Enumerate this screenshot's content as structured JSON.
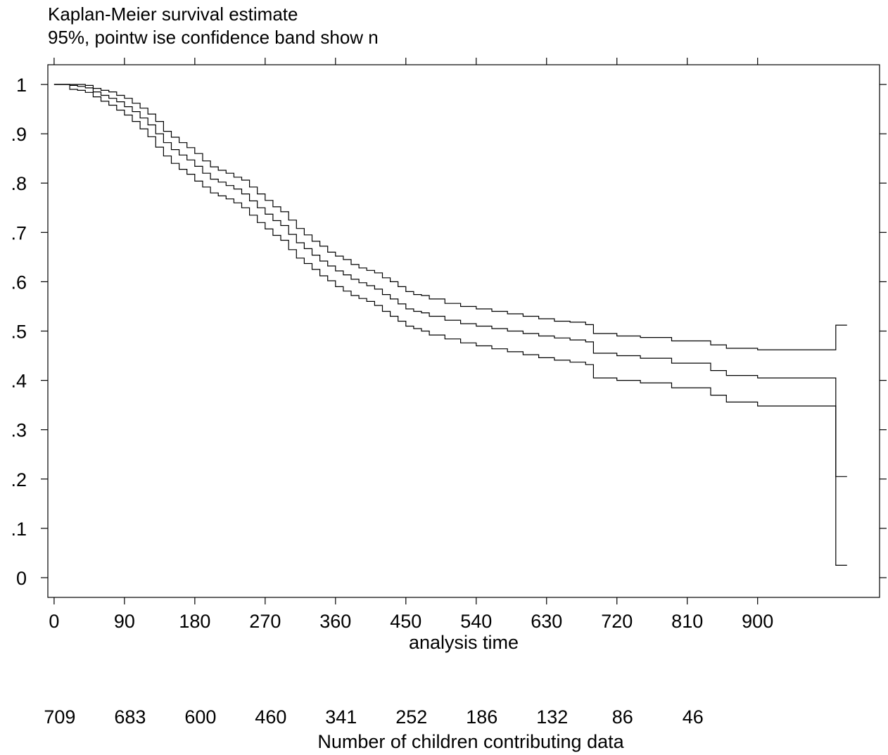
{
  "chart_data": {
    "type": "line",
    "title": "Kaplan-Meier survival estimate",
    "subtitle": "95%, pointw ise confidence band show n",
    "xlabel": "analysis time",
    "ylabel": "",
    "xlim": [
      -8,
      1056
    ],
    "ylim": [
      -0.04,
      1.04
    ],
    "xticks": [
      0,
      90,
      180,
      270,
      360,
      450,
      540,
      630,
      720,
      810,
      900
    ],
    "xtick_labels": [
      "0",
      "90",
      "180",
      "270",
      "360",
      "450",
      "540",
      "630",
      "720",
      "810",
      "900"
    ],
    "yticks": [
      1,
      0.9,
      0.8,
      0.7,
      0.6,
      0.5,
      0.4,
      0.3,
      0.2,
      0.1,
      0
    ],
    "ytick_labels": [
      "1",
      ".9",
      ".8",
      ".7",
      ".6",
      ".5",
      ".4",
      ".3",
      ".2",
      ".1",
      "0"
    ],
    "grid": false,
    "series": [
      {
        "x": [
          0,
          20,
          30,
          40,
          50,
          60,
          70,
          80,
          90,
          100,
          110,
          120,
          130,
          140,
          150,
          160,
          170,
          180,
          190,
          200,
          210,
          220,
          230,
          240,
          250,
          260,
          270,
          280,
          290,
          300,
          310,
          320,
          330,
          340,
          350,
          360,
          370,
          380,
          390,
          400,
          410,
          420,
          430,
          440,
          450,
          460,
          470,
          480,
          500,
          520,
          540,
          560,
          580,
          600,
          620,
          640,
          660,
          680,
          690,
          720,
          750,
          790,
          840,
          860,
          900,
          950,
          1000
        ],
        "y": [
          1.0,
          1.0,
          1.0,
          0.998,
          0.992,
          0.988,
          0.985,
          0.978,
          0.972,
          0.962,
          0.952,
          0.94,
          0.925,
          0.905,
          0.893,
          0.882,
          0.872,
          0.86,
          0.845,
          0.833,
          0.826,
          0.82,
          0.812,
          0.806,
          0.792,
          0.778,
          0.765,
          0.752,
          0.742,
          0.725,
          0.708,
          0.695,
          0.682,
          0.672,
          0.66,
          0.652,
          0.645,
          0.635,
          0.628,
          0.623,
          0.618,
          0.608,
          0.6,
          0.59,
          0.58,
          0.574,
          0.572,
          0.565,
          0.556,
          0.55,
          0.545,
          0.54,
          0.535,
          0.53,
          0.525,
          0.52,
          0.518,
          0.513,
          0.495,
          0.49,
          0.487,
          0.48,
          0.472,
          0.465,
          0.462,
          0.462,
          0.512
        ]
      },
      {
        "x": [
          0,
          20,
          30,
          40,
          50,
          60,
          70,
          80,
          90,
          100,
          110,
          120,
          130,
          140,
          150,
          160,
          170,
          180,
          190,
          200,
          210,
          220,
          230,
          240,
          250,
          260,
          270,
          280,
          290,
          300,
          310,
          320,
          330,
          340,
          350,
          360,
          370,
          380,
          390,
          400,
          410,
          420,
          430,
          440,
          450,
          460,
          470,
          480,
          500,
          520,
          540,
          560,
          580,
          600,
          620,
          640,
          660,
          680,
          690,
          720,
          750,
          790,
          840,
          860,
          900,
          950,
          1000
        ],
        "y": [
          1.0,
          0.998,
          0.996,
          0.993,
          0.985,
          0.978,
          0.972,
          0.965,
          0.955,
          0.945,
          0.932,
          0.918,
          0.9,
          0.882,
          0.868,
          0.857,
          0.847,
          0.834,
          0.82,
          0.808,
          0.802,
          0.795,
          0.788,
          0.778,
          0.764,
          0.75,
          0.737,
          0.724,
          0.714,
          0.696,
          0.679,
          0.667,
          0.654,
          0.642,
          0.632,
          0.622,
          0.614,
          0.605,
          0.598,
          0.592,
          0.585,
          0.574,
          0.565,
          0.555,
          0.545,
          0.54,
          0.537,
          0.53,
          0.522,
          0.515,
          0.51,
          0.505,
          0.5,
          0.495,
          0.49,
          0.486,
          0.482,
          0.478,
          0.455,
          0.45,
          0.445,
          0.435,
          0.42,
          0.41,
          0.405,
          0.405,
          0.205
        ]
      },
      {
        "x": [
          0,
          20,
          30,
          40,
          50,
          60,
          70,
          80,
          90,
          100,
          110,
          120,
          130,
          140,
          150,
          160,
          170,
          180,
          190,
          200,
          210,
          220,
          230,
          240,
          250,
          260,
          270,
          280,
          290,
          300,
          310,
          320,
          330,
          340,
          350,
          360,
          370,
          380,
          390,
          400,
          410,
          420,
          430,
          440,
          450,
          460,
          470,
          480,
          500,
          520,
          540,
          560,
          580,
          600,
          620,
          640,
          660,
          680,
          690,
          720,
          750,
          790,
          840,
          860,
          900,
          950,
          1000
        ],
        "y": [
          1.0,
          0.99,
          0.988,
          0.984,
          0.975,
          0.966,
          0.958,
          0.948,
          0.938,
          0.925,
          0.91,
          0.894,
          0.873,
          0.855,
          0.84,
          0.828,
          0.818,
          0.804,
          0.792,
          0.78,
          0.774,
          0.768,
          0.76,
          0.75,
          0.735,
          0.72,
          0.707,
          0.694,
          0.684,
          0.665,
          0.648,
          0.637,
          0.625,
          0.612,
          0.602,
          0.59,
          0.581,
          0.572,
          0.566,
          0.56,
          0.552,
          0.54,
          0.53,
          0.52,
          0.51,
          0.505,
          0.5,
          0.492,
          0.484,
          0.476,
          0.47,
          0.464,
          0.458,
          0.452,
          0.446,
          0.441,
          0.437,
          0.432,
          0.405,
          0.4,
          0.395,
          0.385,
          0.37,
          0.356,
          0.348,
          0.348,
          0.025
        ]
      }
    ],
    "number_at_risk": {
      "label": "Number of children contributing data",
      "x": [
        0,
        90,
        180,
        270,
        360,
        450,
        540,
        630,
        720,
        810
      ],
      "values": [
        "709",
        "683",
        "600",
        "460",
        "341",
        "252",
        "186",
        "132",
        "86",
        "46"
      ]
    }
  }
}
